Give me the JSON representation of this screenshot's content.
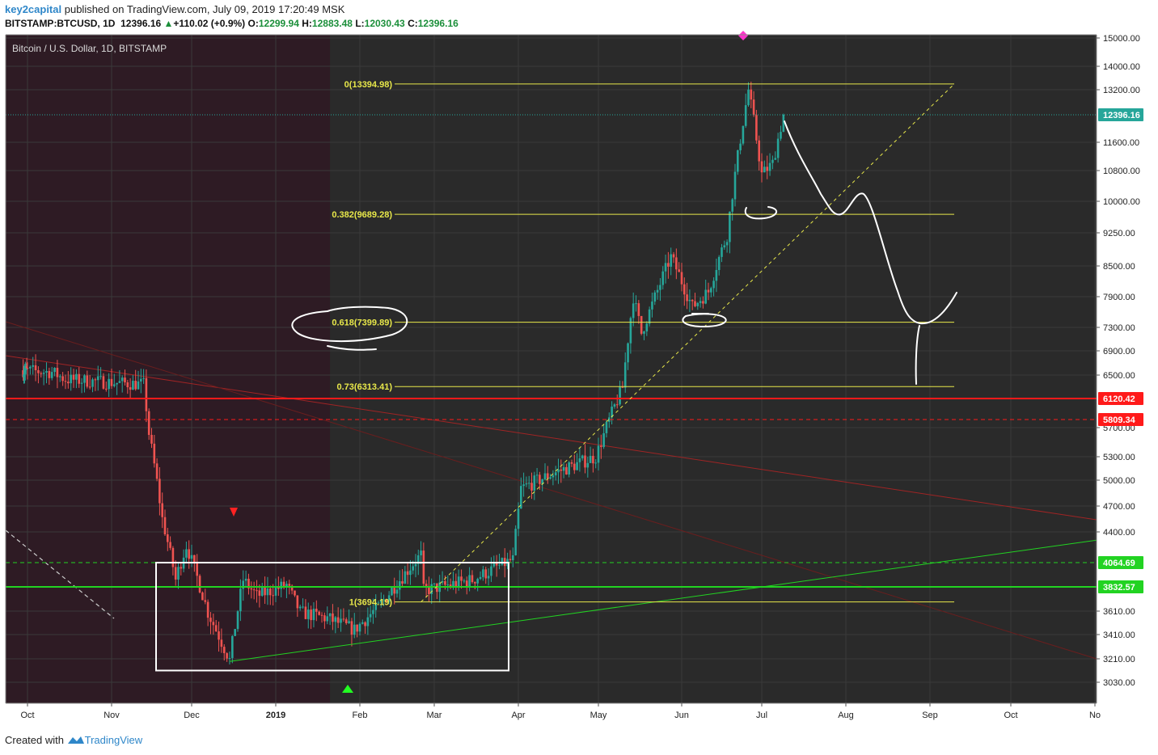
{
  "header": {
    "author": "key2capital",
    "published_text": "published on TradingView.com, July 09, 2019 17:20:49 MSK",
    "symbol": "BITSTAMP:BTCUSD, 1D",
    "last_price": "12396.16",
    "change": "+110.02 (+0.9%)",
    "open_label": "O:",
    "open": "12299.94",
    "high_label": "H:",
    "high": "12883.48",
    "low_label": "L:",
    "low": "12030.43",
    "close_label": "C:",
    "close": "12396.16"
  },
  "footer": {
    "created_with": "Created with",
    "brand": "TradingView"
  },
  "colors": {
    "background": "#2a2a2a",
    "shade": "#2e1b24",
    "up": "#26a69a",
    "down": "#ef5350",
    "fib": "#e8e84a",
    "red_level": "#ff1a1a",
    "green_level": "#22d322",
    "drawing": "#ffffff"
  },
  "icons": [
    "red-down-arrow-icon",
    "green-up-arrow-icon",
    "magenta-diamond-icon",
    "tradingview-logo-icon"
  ],
  "chart_data": {
    "type": "candlestick",
    "title": "Bitcoin / U.S. Dollar, 1D, BITSTAMP",
    "y_axis_ticks": [
      "15000.00",
      "14000.00",
      "13200.00",
      "11600.00",
      "10800.00",
      "10000.00",
      "9250.00",
      "8500.00",
      "7900.00",
      "7300.00",
      "6900.00",
      "6500.00",
      "5700.00",
      "5300.00",
      "5000.00",
      "4700.00",
      "4400.00",
      "3610.00",
      "3410.00",
      "3210.00",
      "3030.00"
    ],
    "x_axis_ticks": [
      "Oct",
      "Nov",
      "Dec",
      "2019",
      "Feb",
      "Mar",
      "Apr",
      "May",
      "Jun",
      "Jul",
      "Aug",
      "Sep",
      "Oct",
      "No"
    ],
    "price_labels": [
      {
        "value": "12396.16",
        "color": "#26a69a"
      },
      {
        "value": "6120.42",
        "color": "#ff1a1a"
      },
      {
        "value": "5809.34",
        "color": "#ff1a1a"
      },
      {
        "value": "4064.69",
        "color": "#22d322"
      },
      {
        "value": "3832.57",
        "color": "#22d322"
      }
    ],
    "fib_levels": [
      {
        "label": "0(13394.98)",
        "value": 13394.98
      },
      {
        "label": "0.382(9689.28)",
        "value": 9689.28
      },
      {
        "label": "0.618(7399.89)",
        "value": 7399.89
      },
      {
        "label": "0.73(6313.41)",
        "value": 6313.41
      },
      {
        "label": "1(3694.19)",
        "value": 3694.19
      }
    ],
    "horizontal_levels": [
      {
        "value": 6120.42,
        "style": "solid",
        "color": "red"
      },
      {
        "value": 5809.34,
        "style": "dashed",
        "color": "red"
      },
      {
        "value": 4064.69,
        "style": "dashed",
        "color": "green"
      },
      {
        "value": 3832.57,
        "style": "solid",
        "color": "green"
      }
    ],
    "last_price": 12396.16,
    "price_path": [
      {
        "date": "2018-09-25",
        "close": 6580
      },
      {
        "date": "2018-10-10",
        "close": 6550
      },
      {
        "date": "2018-10-15",
        "close": 6430
      },
      {
        "date": "2018-11-01",
        "close": 6380
      },
      {
        "date": "2018-11-13",
        "close": 6350
      },
      {
        "date": "2018-11-15",
        "close": 5620
      },
      {
        "date": "2018-11-20",
        "close": 4550
      },
      {
        "date": "2018-11-25",
        "close": 3900
      },
      {
        "date": "2018-11-29",
        "close": 4250
      },
      {
        "date": "2018-12-07",
        "close": 3600
      },
      {
        "date": "2018-12-15",
        "close": 3200
      },
      {
        "date": "2018-12-20",
        "close": 3900
      },
      {
        "date": "2018-12-25",
        "close": 3750
      },
      {
        "date": "2019-01-05",
        "close": 3850
      },
      {
        "date": "2019-01-10",
        "close": 3600
      },
      {
        "date": "2019-01-20",
        "close": 3550
      },
      {
        "date": "2019-01-30",
        "close": 3450
      },
      {
        "date": "2019-02-08",
        "close": 3650
      },
      {
        "date": "2019-02-24",
        "close": 4150
      },
      {
        "date": "2019-02-25",
        "close": 3800
      },
      {
        "date": "2019-03-15",
        "close": 3900
      },
      {
        "date": "2019-03-30",
        "close": 4100
      },
      {
        "date": "2019-04-02",
        "close": 4900
      },
      {
        "date": "2019-04-15",
        "close": 5100
      },
      {
        "date": "2019-04-30",
        "close": 5300
      },
      {
        "date": "2019-05-10",
        "close": 6300
      },
      {
        "date": "2019-05-14",
        "close": 7900
      },
      {
        "date": "2019-05-17",
        "close": 7200
      },
      {
        "date": "2019-05-28",
        "close": 8700
      },
      {
        "date": "2019-06-05",
        "close": 7700
      },
      {
        "date": "2019-06-11",
        "close": 8000
      },
      {
        "date": "2019-06-18",
        "close": 9200
      },
      {
        "date": "2019-06-26",
        "close": 13200
      },
      {
        "date": "2019-07-01",
        "close": 10700
      },
      {
        "date": "2019-07-05",
        "close": 11000
      },
      {
        "date": "2019-07-09",
        "close": 12396
      }
    ]
  }
}
